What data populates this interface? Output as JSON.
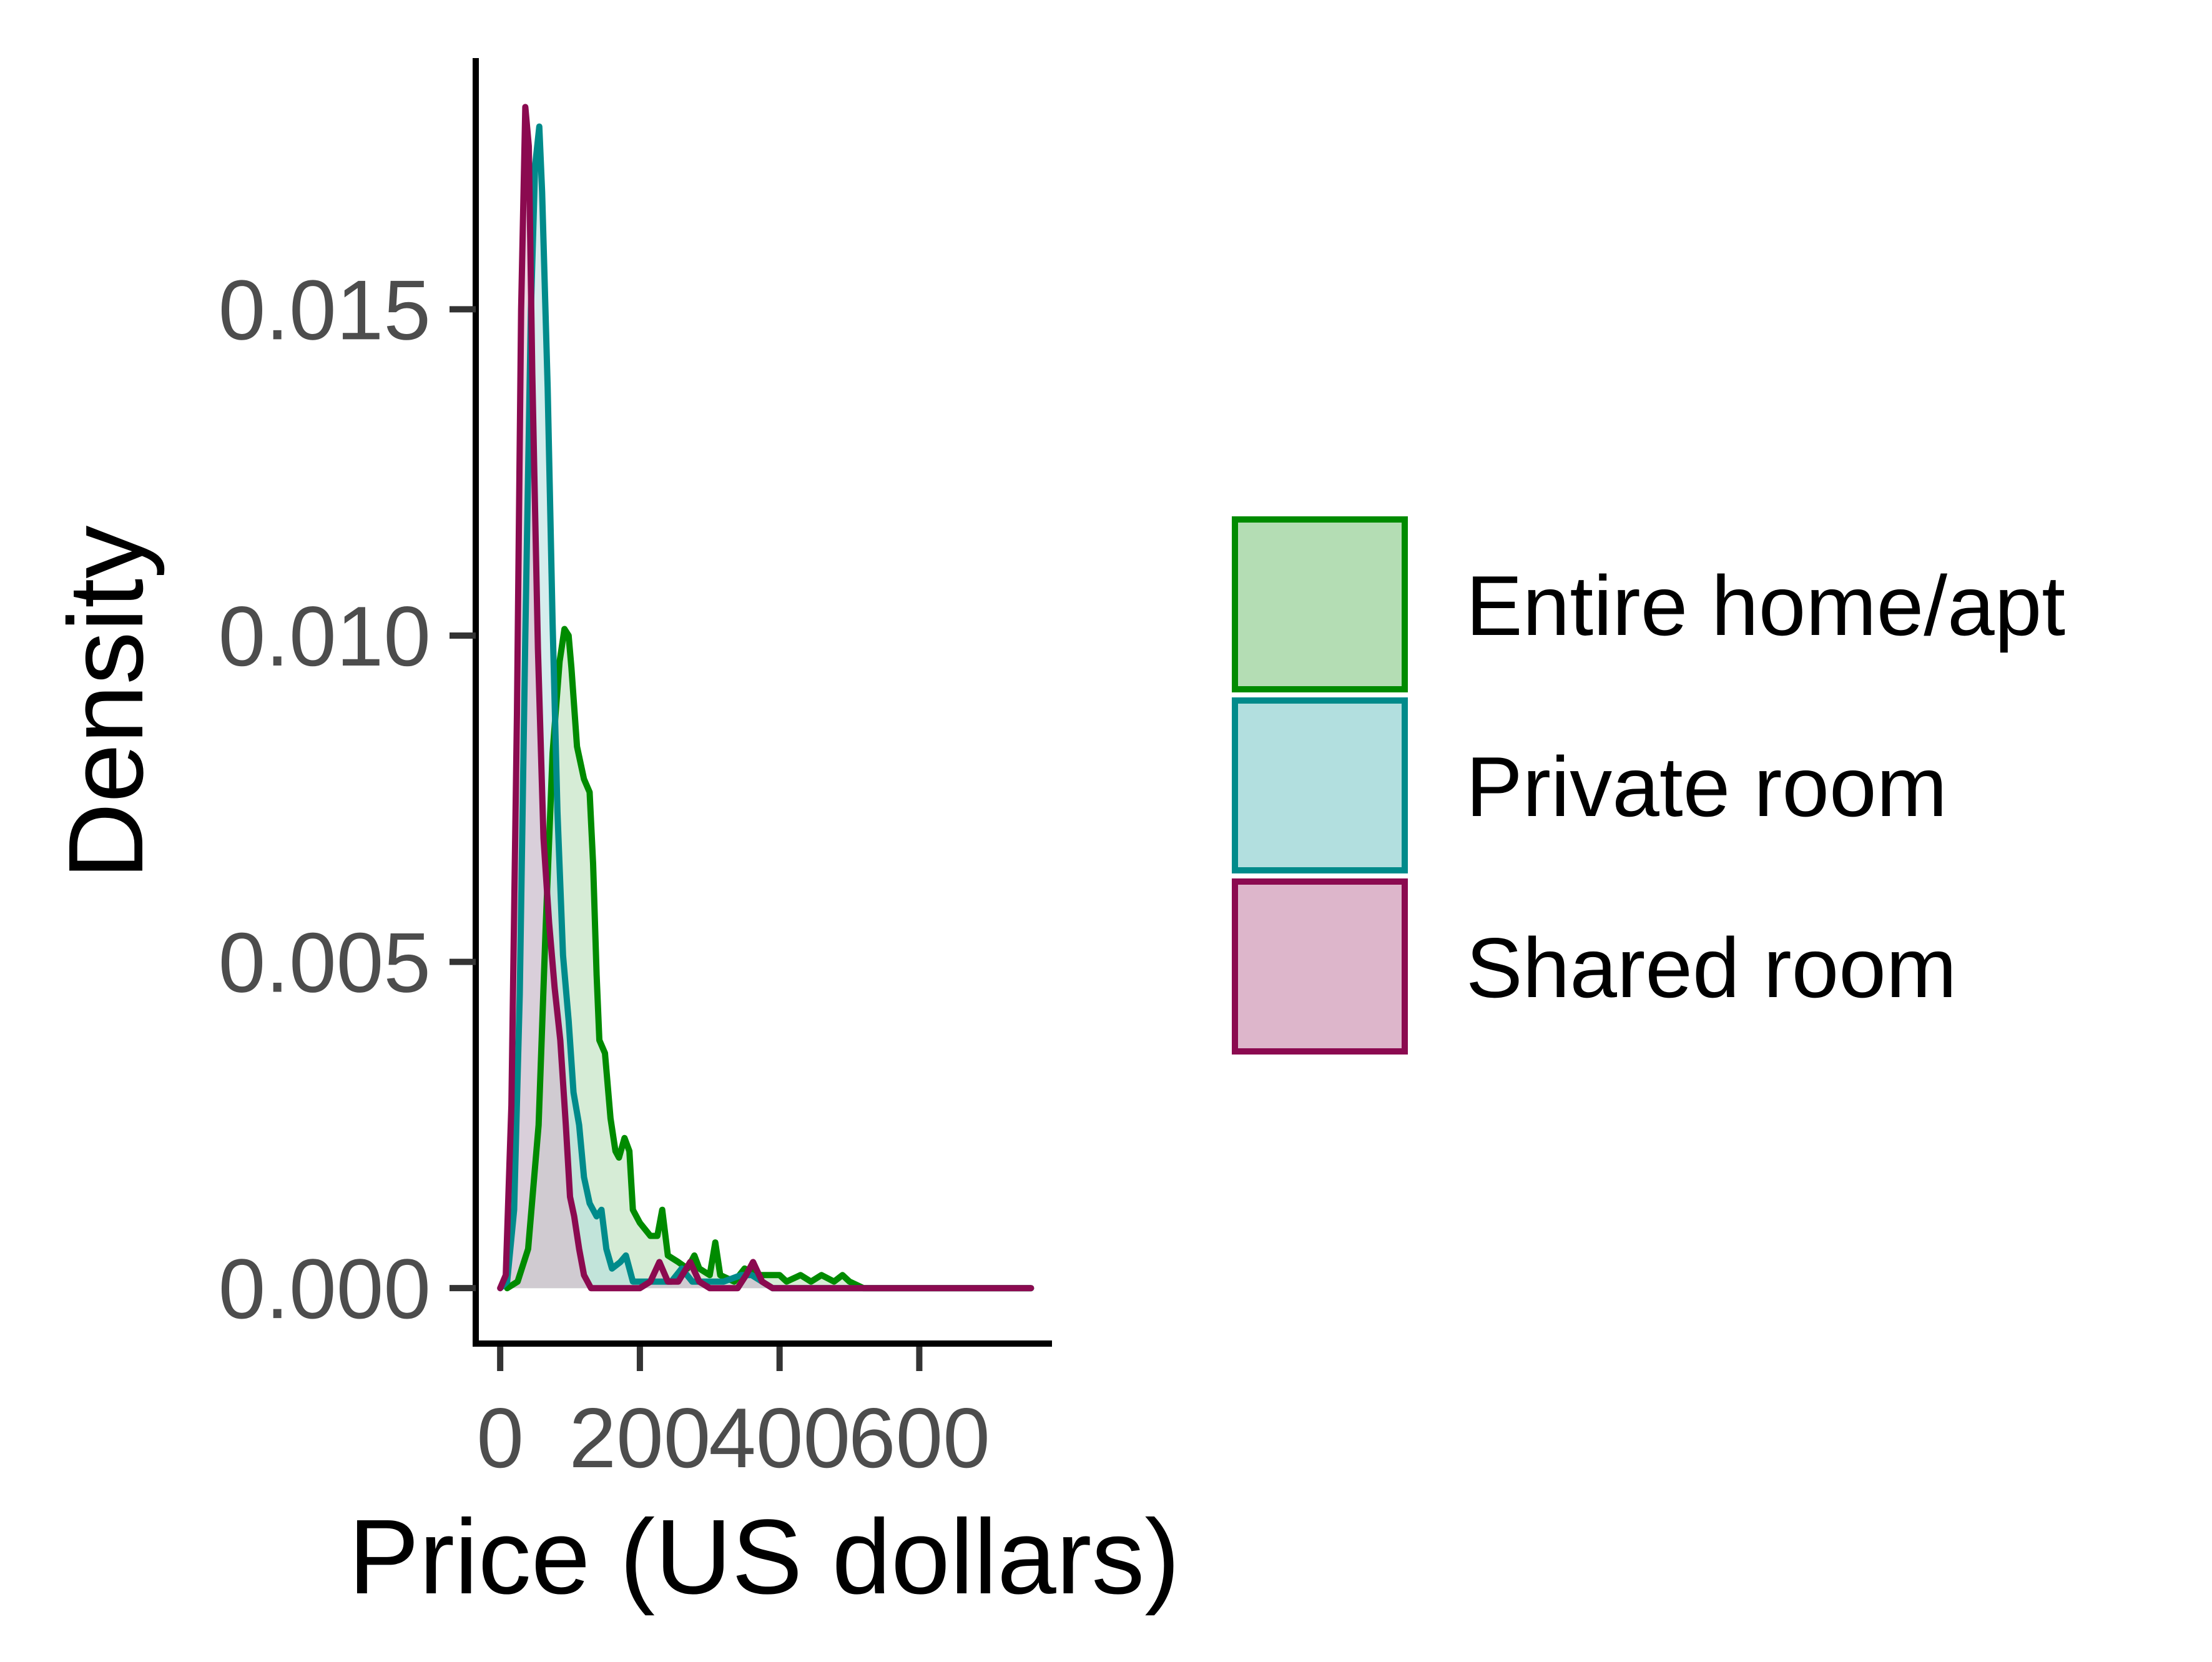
{
  "chart_data": {
    "type": "area",
    "title": "",
    "xlabel": "Price (US dollars)",
    "ylabel": "Density",
    "xlim": [
      -35,
      790
    ],
    "ylim": [
      -0.00085,
      0.01885
    ],
    "x_ticks": [
      0,
      200,
      400,
      600
    ],
    "x_tick_labels": [
      "0",
      "200",
      "400",
      "600"
    ],
    "y_ticks": [
      0,
      0.005,
      0.01,
      0.015
    ],
    "y_tick_labels": [
      "0.000",
      "0.005",
      "0.010",
      "0.015"
    ],
    "grid": false,
    "legend_position": "right",
    "series": [
      {
        "name": "Entire home/apt",
        "line_color": "#008B00",
        "fill_color": "#B4DDB4",
        "fill_opacity": 0.55,
        "points": [
          [
            10,
            0
          ],
          [
            25,
            0.0001
          ],
          [
            40,
            0.0006
          ],
          [
            55,
            0.0025
          ],
          [
            65,
            0.0055
          ],
          [
            75,
            0.0082
          ],
          [
            85,
            0.0096
          ],
          [
            92,
            0.0101
          ],
          [
            98,
            0.01
          ],
          [
            102,
            0.0095
          ],
          [
            110,
            0.0083
          ],
          [
            120,
            0.0078
          ],
          [
            128,
            0.0076
          ],
          [
            133,
            0.0065
          ],
          [
            138,
            0.0048
          ],
          [
            142,
            0.0038
          ],
          [
            150,
            0.0036
          ],
          [
            158,
            0.0026
          ],
          [
            165,
            0.0021
          ],
          [
            170,
            0.002
          ],
          [
            178,
            0.0023
          ],
          [
            185,
            0.0021
          ],
          [
            190,
            0.0012
          ],
          [
            200,
            0.001
          ],
          [
            215,
            0.0008
          ],
          [
            225,
            0.0008
          ],
          [
            232,
            0.0012
          ],
          [
            240,
            0.0005
          ],
          [
            255,
            0.0004
          ],
          [
            268,
            0.0003
          ],
          [
            278,
            0.0005
          ],
          [
            285,
            0.0003
          ],
          [
            300,
            0.0002
          ],
          [
            308,
            0.0007
          ],
          [
            315,
            0.0002
          ],
          [
            335,
            0.0001
          ],
          [
            350,
            0.0003
          ],
          [
            370,
            0.0002
          ],
          [
            390,
            0.0002
          ],
          [
            400,
            0.0002
          ],
          [
            410,
            0.0001
          ],
          [
            430,
            0.0002
          ],
          [
            445,
            0.0001
          ],
          [
            460,
            0.0002
          ],
          [
            478,
            0.0001
          ],
          [
            490,
            0.0002
          ],
          [
            500,
            0.0001
          ],
          [
            520,
            0
          ],
          [
            600,
            0
          ],
          [
            760,
            0
          ]
        ]
      },
      {
        "name": "Private room",
        "line_color": "#008B8B",
        "fill_color": "#B2DFDF",
        "fill_opacity": 0.55,
        "points": [
          [
            0,
            0
          ],
          [
            10,
            0.0001
          ],
          [
            20,
            0.0012
          ],
          [
            28,
            0.0045
          ],
          [
            36,
            0.01
          ],
          [
            44,
            0.015
          ],
          [
            50,
            0.0172
          ],
          [
            56,
            0.0178
          ],
          [
            60,
            0.0168
          ],
          [
            68,
            0.0138
          ],
          [
            75,
            0.0102
          ],
          [
            82,
            0.0073
          ],
          [
            90,
            0.0051
          ],
          [
            98,
            0.0041
          ],
          [
            105,
            0.003
          ],
          [
            113,
            0.0025
          ],
          [
            120,
            0.0017
          ],
          [
            128,
            0.0013
          ],
          [
            138,
            0.0011
          ],
          [
            145,
            0.0012
          ],
          [
            152,
            0.0006
          ],
          [
            160,
            0.0003
          ],
          [
            172,
            0.0004
          ],
          [
            180,
            0.0005
          ],
          [
            190,
            0.0001
          ],
          [
            210,
            0.0001
          ],
          [
            230,
            0.0001
          ],
          [
            245,
            0.0001
          ],
          [
            260,
            0.0003
          ],
          [
            275,
            0.0001
          ],
          [
            300,
            0.0001
          ],
          [
            320,
            0.0001
          ],
          [
            345,
            0.0002
          ],
          [
            360,
            0.0002
          ],
          [
            375,
            0.0001
          ],
          [
            390,
            0
          ],
          [
            500,
            0
          ],
          [
            760,
            0
          ]
        ]
      },
      {
        "name": "Shared room",
        "line_color": "#8B0A50",
        "fill_color": "#DDB6CB",
        "fill_opacity": 0.55,
        "points": [
          [
            0,
            0
          ],
          [
            8,
            0.0002
          ],
          [
            16,
            0.0028
          ],
          [
            24,
            0.0088
          ],
          [
            30,
            0.015
          ],
          [
            36,
            0.0181
          ],
          [
            41,
            0.0175
          ],
          [
            46,
            0.014
          ],
          [
            54,
            0.0098
          ],
          [
            62,
            0.0069
          ],
          [
            70,
            0.0056
          ],
          [
            78,
            0.0046
          ],
          [
            86,
            0.0038
          ],
          [
            94,
            0.0025
          ],
          [
            100,
            0.0014
          ],
          [
            106,
            0.0011
          ],
          [
            113,
            0.0006
          ],
          [
            120,
            0.0002
          ],
          [
            130,
            0
          ],
          [
            150,
            0
          ],
          [
            200,
            0
          ],
          [
            215,
            0.0001
          ],
          [
            228,
            0.0004
          ],
          [
            240,
            0.0001
          ],
          [
            255,
            0.0001
          ],
          [
            272,
            0.0004
          ],
          [
            285,
            0.0001
          ],
          [
            300,
            0
          ],
          [
            340,
            0
          ],
          [
            352,
            0.0002
          ],
          [
            362,
            0.0004
          ],
          [
            375,
            0.0001
          ],
          [
            390,
            0
          ],
          [
            500,
            0
          ],
          [
            760,
            0
          ]
        ]
      }
    ]
  }
}
